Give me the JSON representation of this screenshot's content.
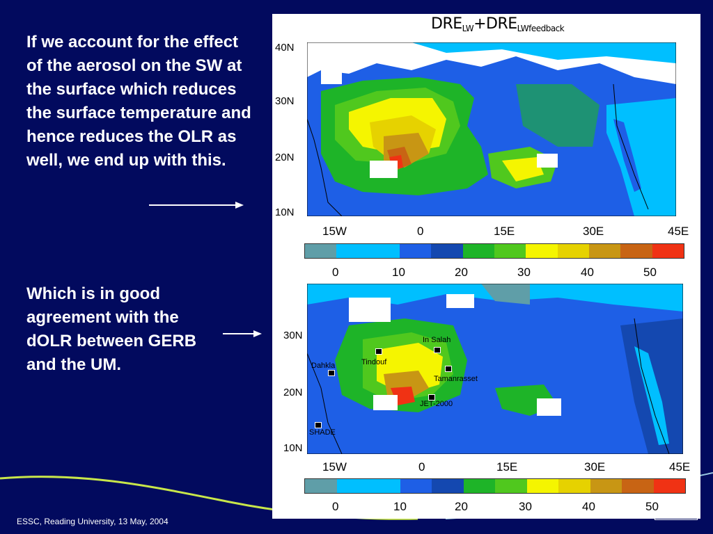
{
  "slide": {
    "text_1": "If we account for the effect of the aerosol on the SW at the surface which reduces the surface temperature and hence reduces the OLR as well, we end up with this.",
    "text_2": "Which is in good agreement with the dOLR between GERB and the UM.",
    "footer": "ESSC, Reading University, 13 May, 2004"
  },
  "top_panel": {
    "title_main1": "DRE",
    "title_sub1": "LW",
    "title_plus": "+DRE",
    "title_sub2": "LWfeedback",
    "lat_labels": [
      "40N",
      "30N",
      "20N",
      "10N"
    ],
    "lon_labels": [
      "15W",
      "0",
      "15E",
      "30E",
      "45E"
    ],
    "cbar_labels": [
      "0",
      "10",
      "20",
      "30",
      "40",
      "50"
    ]
  },
  "bottom_panel": {
    "lat_labels": [
      "30N",
      "20N",
      "10N"
    ],
    "lon_labels": [
      "15W",
      "0",
      "15E",
      "30E",
      "45E"
    ],
    "cbar_labels": [
      "0",
      "10",
      "20",
      "30",
      "40",
      "50"
    ],
    "sites": [
      "In Salah",
      "Tindouf",
      "Tamanrasset",
      "Dahkla",
      "JET-2000",
      "SHADE"
    ]
  },
  "colors": {
    "background": "#020a5e",
    "colorbar": [
      "#5f9ea8",
      "#00bfff",
      "#00bfff",
      "#1e5fe6",
      "#1448b0",
      "#1eb428",
      "#50c81e",
      "#f5f500",
      "#e6d200",
      "#c89614",
      "#c86414",
      "#f03214"
    ]
  }
}
